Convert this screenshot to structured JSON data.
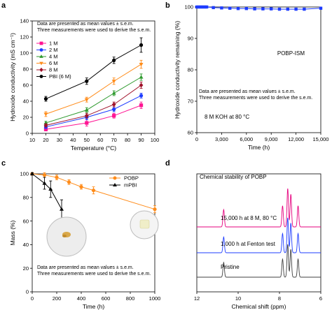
{
  "chart_data": [
    {
      "panel": "a",
      "type": "line",
      "xlabel": "Temperature (°C)",
      "ylabel": "Hydroxide conductivity (mS cm⁻¹)",
      "xlim": [
        10,
        100
      ],
      "ylim": [
        0,
        140
      ],
      "xticks": [
        10,
        20,
        30,
        40,
        50,
        60,
        70,
        80,
        90,
        100
      ],
      "yticks": [
        0,
        20,
        40,
        60,
        80,
        100,
        120,
        140
      ],
      "note_lines": [
        "Data are presented as mean values ± s.e.m.",
        "Three measurements were used to derive the s.e.m."
      ],
      "x": [
        20,
        50,
        70,
        90
      ],
      "series": [
        {
          "name": "1 M",
          "color": "#ff1493",
          "marker": "square",
          "values": [
            5,
            13,
            22,
            35
          ],
          "errors": [
            2,
            4,
            3,
            4
          ]
        },
        {
          "name": "2 M",
          "color": "#1e3cff",
          "marker": "circle",
          "values": [
            8,
            20,
            30,
            47
          ],
          "errors": [
            2,
            3,
            3,
            3
          ]
        },
        {
          "name": "4 M",
          "color": "#2e9a2e",
          "marker": "triangle-up",
          "values": [
            13,
            29,
            50,
            70
          ],
          "errors": [
            2,
            3,
            3,
            4
          ]
        },
        {
          "name": "6 M",
          "color": "#ff8c1a",
          "marker": "triangle-down",
          "values": [
            24,
            42,
            65,
            86
          ],
          "errors": [
            3,
            3,
            4,
            5
          ]
        },
        {
          "name": "8 M",
          "color": "#a0122a",
          "marker": "diamond",
          "values": [
            10,
            22,
            36,
            60
          ],
          "errors": [
            2,
            3,
            3,
            4
          ]
        },
        {
          "name": "PBI (6 M)",
          "color": "#000000",
          "marker": "circle",
          "values": [
            43,
            65,
            91,
            110
          ],
          "errors": [
            3,
            4,
            4,
            9
          ]
        }
      ]
    },
    {
      "panel": "b",
      "type": "line",
      "xlabel": "Time (h)",
      "ylabel": "Hydroxide conductivity remaining (%)",
      "xlim": [
        0,
        15000
      ],
      "ylim": [
        60,
        100
      ],
      "xticks": [
        0,
        3000,
        6000,
        9000,
        12000,
        15000
      ],
      "xtick_labels": [
        "0",
        "3,000",
        "6,000",
        "9,000",
        "12,000",
        "15,000"
      ],
      "yticks": [
        60,
        70,
        80,
        90,
        100
      ],
      "series_label": "POBP-ISM",
      "note_lines": [
        "Data are presented as mean values ± s.e.m.",
        "Three measurements were used to derive the s.e.m."
      ],
      "condition": "8 M KOH at 80 °C",
      "series": [
        {
          "name": "POBP-ISM",
          "color": "#1e3cff",
          "marker": "square",
          "x": [
            0,
            200,
            400,
            600,
            800,
            1000,
            1200,
            2000,
            3000,
            4000,
            5000,
            6000,
            7000,
            8000,
            9000,
            10000,
            11000,
            12000,
            13000,
            15000
          ],
          "values": [
            100,
            100,
            100,
            100,
            100,
            100,
            100,
            99.8,
            99.7,
            99.6,
            99.5,
            99.5,
            99.4,
            99.4,
            99.4,
            99.3,
            99.3,
            99.3,
            99.3,
            99.6
          ]
        }
      ]
    },
    {
      "panel": "c",
      "type": "line",
      "xlabel": "Time (h)",
      "ylabel": "Mass (%)",
      "xlim": [
        0,
        1000
      ],
      "ylim": [
        0,
        100
      ],
      "xticks": [
        0,
        200,
        400,
        600,
        800,
        1000
      ],
      "yticks": [
        0,
        20,
        40,
        60,
        80,
        100
      ],
      "note_lines": [
        "Data are presented as mean values ± s.e.m.",
        "Three measurements were used to derive the s.e.m."
      ],
      "series": [
        {
          "name": "POBP",
          "color": "#ff8c1a",
          "marker": "circle",
          "x": [
            0,
            100,
            200,
            300,
            400,
            500,
            1000
          ],
          "values": [
            100,
            99,
            97,
            93,
            89,
            86,
            70
          ],
          "errors": [
            1,
            2,
            2,
            2,
            2,
            3,
            3
          ]
        },
        {
          "name": "mPBI",
          "color": "#000000",
          "marker": "triangle-up",
          "x": [
            0,
            100,
            150,
            240
          ],
          "values": [
            100,
            92,
            87,
            70
          ],
          "errors": [
            1,
            5,
            7,
            8
          ]
        }
      ]
    },
    {
      "panel": "d",
      "type": "line",
      "title": "Chemical stability of POBP",
      "xlabel": "Chemical shift (ppm)",
      "xlim": [
        12,
        6
      ],
      "xticks": [
        12,
        10,
        8,
        6
      ],
      "spectra": [
        {
          "name": "15,000 h at 8 M, 80 °C",
          "color": "#e6007e"
        },
        {
          "name": "1,000 h at Fenton test",
          "color": "#1e3cff"
        },
        {
          "name": "Pristine",
          "color": "#404040"
        }
      ],
      "peaks_ppm": [
        {
          "ppm": 10.7,
          "rel": 0.45
        },
        {
          "ppm": 7.85,
          "rel": 0.55
        },
        {
          "ppm": 7.6,
          "rel": 1.0
        },
        {
          "ppm": 7.45,
          "rel": 0.85
        },
        {
          "ppm": 7.1,
          "rel": 0.55
        }
      ]
    }
  ]
}
